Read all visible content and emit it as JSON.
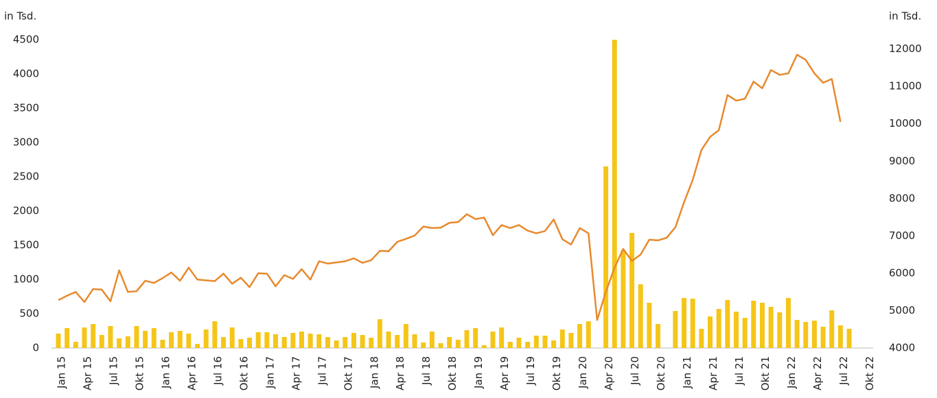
{
  "chart_data": {
    "type": "bar-line",
    "ylabel": "in Tsd.",
    "y2label": "in Tsd.",
    "categories": [
      "Jan 15",
      null,
      null,
      "Apr 15",
      null,
      null,
      "Jul 15",
      null,
      null,
      "Okt 15",
      null,
      null,
      "Jan 16",
      null,
      null,
      "Apr 16",
      null,
      null,
      "Jul 16",
      null,
      null,
      "Okt 16",
      null,
      null,
      "Jan 17",
      null,
      null,
      "Apr 17",
      null,
      null,
      "Jul 17",
      null,
      null,
      "Okt 17",
      null,
      null,
      "Jan 18",
      null,
      null,
      "Apr 18",
      null,
      null,
      "Jul 18",
      null,
      null,
      "Okt 18",
      null,
      null,
      "Jan 19",
      null,
      null,
      "Apr 19",
      null,
      null,
      "Jul 19",
      null,
      null,
      "Okt 19",
      null,
      null,
      "Jan 20",
      null,
      null,
      "Apr 20",
      null,
      null,
      "Jul 20",
      null,
      null,
      "Okt 20",
      null,
      null,
      "Jan 21",
      null,
      null,
      "Apr 21",
      null,
      null,
      "Jul 21",
      null,
      null,
      "Okt 21",
      null,
      null,
      "Jan 22",
      null,
      null,
      "Apr 22",
      null,
      null,
      "Jul 22",
      null,
      null,
      "Okt 22"
    ],
    "series": [
      {
        "type": "bar",
        "color": "#f5c518",
        "values": [
          210,
          290,
          90,
          300,
          350,
          190,
          320,
          140,
          170,
          320,
          250,
          290,
          120,
          230,
          250,
          210,
          60,
          270,
          390,
          160,
          300,
          130,
          150,
          230,
          230,
          200,
          160,
          220,
          240,
          210,
          200,
          160,
          110,
          160,
          220,
          190,
          150,
          420,
          240,
          190,
          350,
          200,
          80,
          240,
          70,
          160,
          120,
          260,
          290,
          40,
          240,
          300,
          90,
          150,
          90,
          180,
          180,
          110,
          270,
          220,
          350,
          390,
          null,
          2650,
          4500,
          1430,
          1680,
          930,
          660,
          350,
          null,
          540,
          730,
          720,
          280,
          460,
          570,
          700,
          530,
          440,
          690,
          660,
          600,
          520,
          730,
          410,
          380,
          400,
          310,
          550,
          330,
          280,
          null,
          null
        ]
      },
      {
        "type": "line",
        "axis": "y2",
        "color": "#e8892c",
        "values": [
          5280,
          5400,
          5500,
          5230,
          5580,
          5560,
          5250,
          6080,
          5500,
          5520,
          5800,
          5740,
          5870,
          6020,
          5800,
          6150,
          5830,
          5810,
          5790,
          5990,
          5720,
          5880,
          5630,
          6000,
          5990,
          5650,
          5950,
          5850,
          6110,
          5830,
          6320,
          6260,
          6290,
          6320,
          6400,
          6280,
          6350,
          6600,
          6590,
          6840,
          6920,
          7010,
          7250,
          7210,
          7220,
          7350,
          7370,
          7580,
          7450,
          7490,
          7020,
          7290,
          7210,
          7290,
          7140,
          7070,
          7130,
          7440,
          6910,
          6770,
          7210,
          7070,
          4750,
          5500,
          6150,
          6650,
          6330,
          6500,
          6900,
          6880,
          6950,
          7230,
          7900,
          8500,
          9300,
          9650,
          9830,
          10770,
          10620,
          10670,
          11130,
          10950,
          11440,
          11310,
          11350,
          11850,
          11710,
          11350,
          11100,
          11200,
          10050,
          null,
          null,
          null
        ]
      }
    ],
    "ylim": [
      0,
      4500
    ],
    "yticks": [
      0,
      500,
      1000,
      1500,
      2000,
      2500,
      3000,
      3500,
      4000,
      4500
    ],
    "y2lim": [
      4000,
      12250
    ],
    "y2ticks": [
      4000,
      5000,
      6000,
      7000,
      8000,
      9000,
      10000,
      11000,
      12000
    ]
  }
}
